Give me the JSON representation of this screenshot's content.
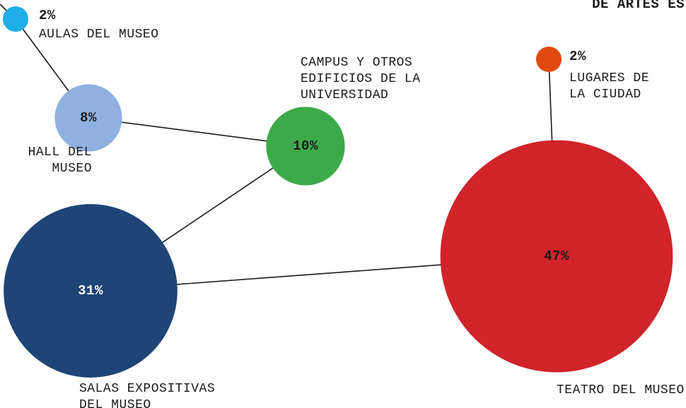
{
  "header": "DE ARTES ES",
  "nodes": [
    {
      "id": "aulas",
      "label": [
        "AULAS DEL MUSEO"
      ],
      "value": 2,
      "value_label": "2%",
      "color": "#1eaee8"
    },
    {
      "id": "hall",
      "label": [
        "HALL DEL",
        "MUSEO"
      ],
      "value": 8,
      "value_label": "8%",
      "color": "#8fb0e0"
    },
    {
      "id": "campus",
      "label": [
        "CAMPUS Y OTROS",
        "EDIFICIOS DE LA",
        "UNIVERSIDAD"
      ],
      "value": 10,
      "value_label": "10%",
      "color": "#3daa4a"
    },
    {
      "id": "salas",
      "label": [
        "SALAS EXPOSITIVAS",
        "DEL MUSEO"
      ],
      "value": 31,
      "value_label": "31%",
      "color": "#1f4577"
    },
    {
      "id": "teatro",
      "label": [
        "TEATRO DEL MUSEO"
      ],
      "value": 47,
      "value_label": "47%",
      "color": "#d0232a"
    },
    {
      "id": "lugares",
      "label": [
        "LUGARES DE",
        "LA CIUDAD"
      ],
      "value": 2,
      "value_label": "2%",
      "color": "#e04a10"
    }
  ],
  "edges": [
    [
      "aulas",
      "hall"
    ],
    [
      "hall",
      "campus"
    ],
    [
      "campus",
      "salas"
    ],
    [
      "salas",
      "teatro"
    ],
    [
      "lugares",
      "teatro"
    ]
  ]
}
